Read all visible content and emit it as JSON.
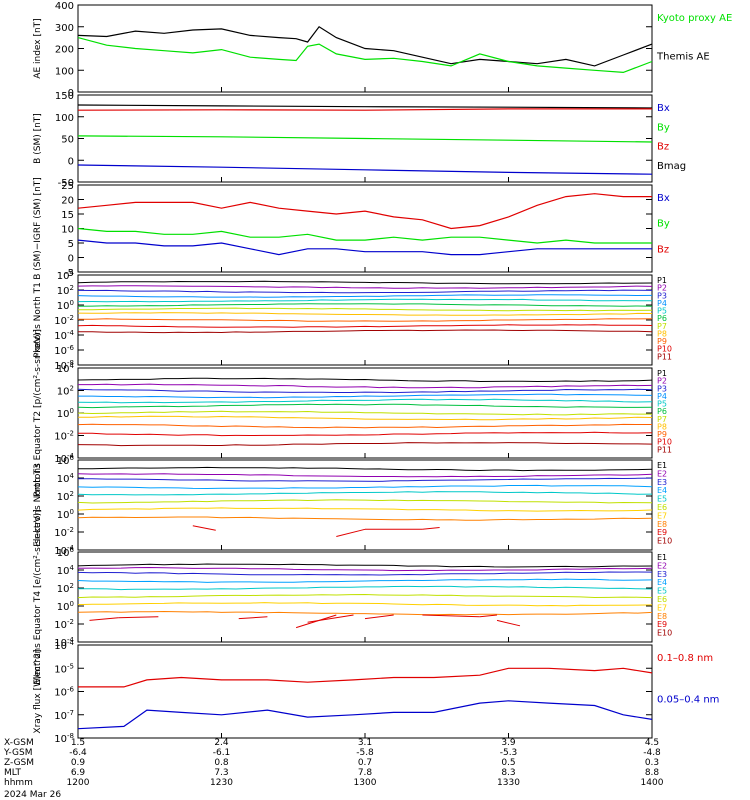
{
  "colors": {
    "black": "#000000",
    "green": "#00e000",
    "red": "#e00000",
    "blue": "#0000cc"
  },
  "chart_data": [
    {
      "type": "line",
      "panel": "ae",
      "ylabel": "AE index [nT]",
      "yticks": [
        "400",
        "300",
        "200",
        "100",
        "0"
      ],
      "ylim": [
        0,
        400
      ],
      "legend": [
        {
          "label": "Kyoto proxy AE",
          "color": "#00e000"
        },
        {
          "label": "Themis AE",
          "color": "#000000"
        }
      ],
      "x": [
        0,
        0.05,
        0.1,
        0.15,
        0.2,
        0.25,
        0.3,
        0.35,
        0.38,
        0.4,
        0.42,
        0.45,
        0.5,
        0.55,
        0.6,
        0.65,
        0.7,
        0.75,
        0.8,
        0.85,
        0.9,
        0.95,
        1
      ],
      "series": [
        {
          "color": "#000000",
          "values": [
            260,
            255,
            280,
            270,
            285,
            290,
            260,
            250,
            245,
            230,
            300,
            250,
            200,
            190,
            160,
            130,
            150,
            140,
            130,
            150,
            120,
            170,
            220
          ]
        },
        {
          "color": "#00e000",
          "values": [
            250,
            215,
            200,
            190,
            180,
            195,
            160,
            150,
            145,
            210,
            220,
            175,
            150,
            155,
            140,
            120,
            175,
            140,
            120,
            110,
            100,
            90,
            140
          ]
        }
      ]
    },
    {
      "type": "line",
      "panel": "bsm",
      "ylabel": "B (SM) [nT]",
      "yticks": [
        "150",
        "100",
        "50",
        "0",
        "-50"
      ],
      "ylim": [
        -50,
        150
      ],
      "legend": [
        {
          "label": "Bx",
          "color": "#0000cc"
        },
        {
          "label": "By",
          "color": "#00e000"
        },
        {
          "label": "Bz",
          "color": "#e00000"
        },
        {
          "label": "Bmag",
          "color": "#000000"
        }
      ],
      "x": [
        0,
        0.25,
        0.5,
        0.75,
        1
      ],
      "series": [
        {
          "color": "#000000",
          "values": [
            127,
            125,
            123,
            122,
            120
          ]
        },
        {
          "color": "#e00000",
          "values": [
            115,
            116,
            115,
            118,
            118
          ]
        },
        {
          "color": "#00e000",
          "values": [
            56,
            54,
            50,
            46,
            42
          ]
        },
        {
          "color": "#0000cc",
          "values": [
            -11,
            -16,
            -22,
            -28,
            -32
          ]
        }
      ]
    },
    {
      "type": "line",
      "panel": "bigrf",
      "ylabel": "B (SM)−IGRF (SM) [nT]",
      "yticks": [
        "25",
        "20",
        "15",
        "10",
        "5",
        "0",
        "-5"
      ],
      "ylim": [
        -5,
        25
      ],
      "legend": [
        {
          "label": "Bx",
          "color": "#0000cc"
        },
        {
          "label": "By",
          "color": "#00e000"
        },
        {
          "label": "Bz",
          "color": "#e00000"
        }
      ],
      "x": [
        0,
        0.05,
        0.1,
        0.15,
        0.2,
        0.25,
        0.3,
        0.35,
        0.4,
        0.45,
        0.5,
        0.55,
        0.6,
        0.65,
        0.7,
        0.75,
        0.8,
        0.85,
        0.9,
        0.95,
        1
      ],
      "series": [
        {
          "color": "#e00000",
          "values": [
            17,
            18,
            19,
            19,
            19,
            17,
            19,
            17,
            16,
            15,
            16,
            14,
            13,
            10,
            11,
            14,
            18,
            21,
            22,
            21,
            21
          ]
        },
        {
          "color": "#00e000",
          "values": [
            10,
            9,
            9,
            8,
            8,
            9,
            7,
            7,
            8,
            6,
            6,
            7,
            6,
            7,
            7,
            6,
            5,
            6,
            5,
            5,
            5
          ]
        },
        {
          "color": "#0000cc",
          "values": [
            6,
            5,
            5,
            4,
            4,
            5,
            3,
            1,
            3,
            3,
            2,
            2,
            2,
            1,
            1,
            2,
            3,
            3,
            3,
            3,
            3
          ]
        }
      ]
    },
    {
      "type": "line",
      "panel": "pn",
      "ylabel": "Protons North T1",
      "yticks": [
        "10^4",
        "10^2",
        "10^0",
        "10^-2",
        "10^-4",
        "10^-6",
        "10^-8"
      ],
      "ylim": [
        -8,
        4
      ],
      "yscale": "log",
      "legend": [
        {
          "label": "P1",
          "color": "#000000"
        },
        {
          "label": "P2",
          "color": "#9000b0"
        },
        {
          "label": "P3",
          "color": "#2020d0"
        },
        {
          "label": "P4",
          "color": "#0090ff"
        },
        {
          "label": "P5",
          "color": "#00c8c8"
        },
        {
          "label": "P6",
          "color": "#00c040"
        },
        {
          "label": "P7",
          "color": "#c0e000"
        },
        {
          "label": "P8",
          "color": "#ffc000"
        },
        {
          "label": "P9",
          "color": "#ff6000"
        },
        {
          "label": "P10",
          "color": "#e00000"
        },
        {
          "label": "P11",
          "color": "#a00000"
        }
      ],
      "levels": [
        3.0,
        2.4,
        1.8,
        1.2,
        0.6,
        0.0,
        -0.6,
        -1.2,
        -2.0,
        -2.8,
        -3.5
      ]
    },
    {
      "type": "line",
      "panel": "pe",
      "ylabel": "Protons Equator T2 [p/(cm²-s-sr-keV)]",
      "yticks": [
        "10^4",
        "10^2",
        "10^0",
        "10^-2",
        "10^-4"
      ],
      "ylim": [
        -5,
        4
      ],
      "yscale": "log",
      "legend": [
        {
          "label": "P1",
          "color": "#000000"
        },
        {
          "label": "P2",
          "color": "#9000b0"
        },
        {
          "label": "P3",
          "color": "#2020d0"
        },
        {
          "label": "P4",
          "color": "#0090ff"
        },
        {
          "label": "P5",
          "color": "#00c8c8"
        },
        {
          "label": "P6",
          "color": "#00c040"
        },
        {
          "label": "P7",
          "color": "#c0e000"
        },
        {
          "label": "P8",
          "color": "#ffc000"
        },
        {
          "label": "P9",
          "color": "#ff6000"
        },
        {
          "label": "P10",
          "color": "#e00000"
        },
        {
          "label": "P11",
          "color": "#a00000"
        }
      ],
      "levels": [
        2.8,
        2.2,
        1.7,
        1.2,
        0.7,
        0.2,
        -0.5,
        -1.0,
        -1.8,
        -2.6,
        -3.6
      ]
    },
    {
      "type": "line",
      "panel": "en",
      "ylabel": "Electrons North T3",
      "yticks": [
        "10^6",
        "10^4",
        "10^2",
        "10^0",
        "10^-2",
        "10^-4"
      ],
      "ylim": [
        -4,
        6
      ],
      "yscale": "log",
      "legend": [
        {
          "label": "E1",
          "color": "#000000"
        },
        {
          "label": "E2",
          "color": "#9000b0"
        },
        {
          "label": "E3",
          "color": "#2020d0"
        },
        {
          "label": "E4",
          "color": "#00a0ff"
        },
        {
          "label": "E5",
          "color": "#00c8c8"
        },
        {
          "label": "E6",
          "color": "#c0e000"
        },
        {
          "label": "E7",
          "color": "#ffd000"
        },
        {
          "label": "E8",
          "color": "#ff8000"
        },
        {
          "label": "E9",
          "color": "#e00000"
        },
        {
          "label": "E10",
          "color": "#a00000"
        }
      ],
      "levels": [
        5.0,
        4.3,
        3.8,
        3.0,
        2.3,
        1.4,
        0.5,
        -0.5,
        -99,
        -99
      ]
    },
    {
      "type": "line",
      "panel": "ee",
      "ylabel": "Electrons Equator T4 [e/(cm²-s-sr-keV)]",
      "yticks": [
        "10^6",
        "10^4",
        "10^2",
        "10^0",
        "10^-2",
        "10^-4"
      ],
      "ylim": [
        -4,
        6
      ],
      "yscale": "log",
      "legend": [
        {
          "label": "E1",
          "color": "#000000"
        },
        {
          "label": "E2",
          "color": "#9000b0"
        },
        {
          "label": "E3",
          "color": "#2020d0"
        },
        {
          "label": "E4",
          "color": "#00a0ff"
        },
        {
          "label": "E5",
          "color": "#00c8c8"
        },
        {
          "label": "E6",
          "color": "#c0e000"
        },
        {
          "label": "E7",
          "color": "#ffd000"
        },
        {
          "label": "E8",
          "color": "#ff8000"
        },
        {
          "label": "E9",
          "color": "#e00000"
        },
        {
          "label": "E10",
          "color": "#a00000"
        }
      ],
      "levels": [
        4.5,
        4.1,
        3.6,
        2.8,
        2.0,
        1.1,
        0.2,
        -0.8,
        -99,
        -99
      ]
    },
    {
      "type": "line",
      "panel": "xray",
      "ylabel": "Xray flux [W/m^2]",
      "yticks": [
        "10^-4",
        "10^-5",
        "10^-6",
        "10^-7",
        "10^-8"
      ],
      "ylim": [
        -8,
        -4
      ],
      "yscale": "log",
      "legend": [
        {
          "label": "0.1–0.8 nm",
          "color": "#e00000"
        },
        {
          "label": "0.05–0.4 nm",
          "color": "#0000cc"
        }
      ],
      "x": [
        0,
        0.08,
        0.12,
        0.18,
        0.25,
        0.33,
        0.4,
        0.48,
        0.55,
        0.62,
        0.7,
        0.75,
        0.82,
        0.9,
        0.95,
        1
      ],
      "series": [
        {
          "color": "#e00000",
          "values": [
            -5.8,
            -5.8,
            -5.5,
            -5.4,
            -5.5,
            -5.5,
            -5.6,
            -5.5,
            -5.4,
            -5.4,
            -5.3,
            -5.0,
            -5.0,
            -5.1,
            -5.0,
            -5.2
          ]
        },
        {
          "color": "#0000cc",
          "values": [
            -7.6,
            -7.5,
            -6.8,
            -6.9,
            -7.0,
            -6.8,
            -7.1,
            -7.0,
            -6.9,
            -6.9,
            -6.5,
            -6.4,
            -6.5,
            -6.6,
            -7.0,
            -7.2
          ]
        }
      ]
    }
  ],
  "footer": {
    "rows": [
      {
        "label": "X-GSM",
        "values": [
          "1.5",
          "2.4",
          "3.1",
          "3.9",
          "4.5"
        ]
      },
      {
        "label": "Y-GSM",
        "values": [
          "-6.4",
          "-6.1",
          "-5.8",
          "-5.3",
          "-4.8"
        ]
      },
      {
        "label": "Z-GSM",
        "values": [
          "0.9",
          "0.8",
          "0.7",
          "0.5",
          "0.3"
        ]
      },
      {
        "label": "MLT",
        "values": [
          "6.9",
          "7.3",
          "7.8",
          "8.3",
          "8.8"
        ]
      },
      {
        "label": "hhmm",
        "values": [
          "1200",
          "1230",
          "1300",
          "1330",
          "1400"
        ]
      }
    ],
    "date": "2024 Mar 26"
  }
}
